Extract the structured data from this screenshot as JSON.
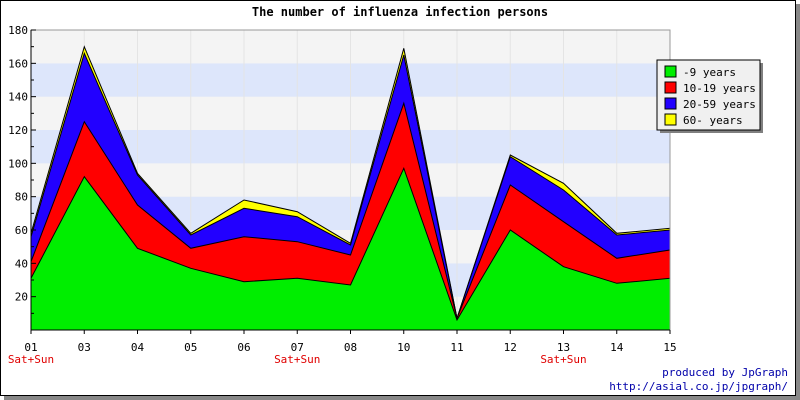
{
  "chart_data": {
    "type": "area",
    "stacked": true,
    "title": "The number of influenza infection persons",
    "categories": [
      "01",
      "03",
      "04",
      "05",
      "06",
      "07",
      "08",
      "10",
      "11",
      "12",
      "13",
      "14",
      "15"
    ],
    "weekend_labels": [
      {
        "category": "01",
        "label": "Sat+Sun"
      },
      {
        "category": "07",
        "label": "Sat+Sun"
      },
      {
        "category": "13",
        "label": "Sat+Sun"
      }
    ],
    "series": [
      {
        "name": "-9 years",
        "color": "#00ee00",
        "values": [
          31,
          92,
          49,
          37,
          29,
          31,
          27,
          97,
          6,
          60,
          38,
          28,
          31
        ]
      },
      {
        "name": "10-19 years",
        "color": "#ff0000",
        "values": [
          10,
          33,
          26,
          12,
          27,
          22,
          18,
          39,
          1,
          27,
          27,
          15,
          17
        ]
      },
      {
        "name": "20-59 years",
        "color": "#2200ff",
        "values": [
          15,
          41,
          18,
          8,
          17,
          15,
          6,
          29,
          0,
          17,
          19,
          14,
          12
        ]
      },
      {
        "name": "60- years",
        "color": "#ffff00",
        "values": [
          2,
          4,
          1,
          1,
          5,
          3,
          1,
          4,
          0,
          1,
          4,
          1,
          1
        ]
      }
    ],
    "ylim": [
      0,
      180
    ],
    "yticks": [
      20,
      40,
      60,
      80,
      100,
      120,
      140,
      160,
      180
    ],
    "grid_bands": true,
    "legend_position": "top-right"
  },
  "footer": {
    "credit_line1": "produced by JpGraph",
    "credit_line2": "http://asial.co.jp/jpgraph/"
  }
}
